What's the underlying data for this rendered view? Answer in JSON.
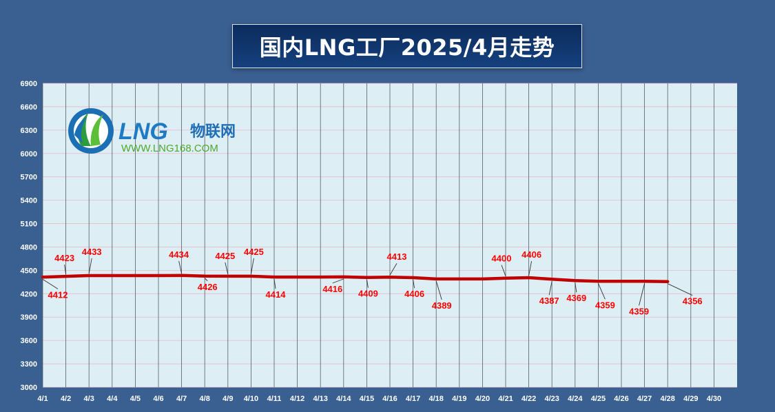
{
  "chart_data": {
    "type": "line",
    "title": "国内LNG工厂2025/4月走势",
    "xlabel": "",
    "ylabel": "",
    "ylim": [
      3000,
      6900
    ],
    "yticks": [
      3000,
      3300,
      3600,
      3900,
      4200,
      4500,
      4800,
      5100,
      5400,
      5700,
      6000,
      6300,
      6600,
      6900
    ],
    "categories": [
      "4/1",
      "4/2",
      "4/3",
      "4/4",
      "4/5",
      "4/6",
      "4/7",
      "4/8",
      "4/9",
      "4/10",
      "4/11",
      "4/12",
      "4/13",
      "4/14",
      "4/15",
      "4/16",
      "4/17",
      "4/18",
      "4/19",
      "4/20",
      "4/21",
      "4/22",
      "4/23",
      "4/24",
      "4/25",
      "4/26",
      "4/27",
      "4/28",
      "4/29",
      "4/30"
    ],
    "series": [
      {
        "color": "#c00000",
        "values": [
          4412,
          4423,
          4433,
          4433,
          4433,
          4433,
          4434,
          4426,
          4425,
          4425,
          4414,
          4414,
          4414,
          4416,
          4409,
          4413,
          4406,
          4389,
          4389,
          4389,
          4400,
          4406,
          4387,
          4369,
          4359,
          4359,
          4359,
          4356,
          null,
          null
        ]
      }
    ],
    "data_labels": [
      {
        "index": 0,
        "text": "4412"
      },
      {
        "index": 1,
        "text": "4423"
      },
      {
        "index": 2,
        "text": "4433"
      },
      {
        "index": 6,
        "text": "4434"
      },
      {
        "index": 7,
        "text": "4426"
      },
      {
        "index": 8,
        "text": "4425"
      },
      {
        "index": 9,
        "text": "4425"
      },
      {
        "index": 10,
        "text": "4414"
      },
      {
        "index": 13,
        "text": "4416"
      },
      {
        "index": 14,
        "text": "4409"
      },
      {
        "index": 15,
        "text": "4413"
      },
      {
        "index": 16,
        "text": "4406"
      },
      {
        "index": 17,
        "text": "4389"
      },
      {
        "index": 20,
        "text": "4400"
      },
      {
        "index": 21,
        "text": "4406"
      },
      {
        "index": 22,
        "text": "4387"
      },
      {
        "index": 23,
        "text": "4369"
      },
      {
        "index": 24,
        "text": "4359"
      },
      {
        "index": 26,
        "text": "4359"
      },
      {
        "index": 27,
        "text": "4356"
      }
    ],
    "grid": true,
    "legend": "none"
  },
  "logo": {
    "brand": "LNG",
    "brand_cn": "物联网",
    "url": "WWW.LNG168.COM"
  },
  "colors": {
    "background": "#3a5f91",
    "plot_area": "#ddeef4",
    "line": "#c00000",
    "label": "#ff0000"
  }
}
